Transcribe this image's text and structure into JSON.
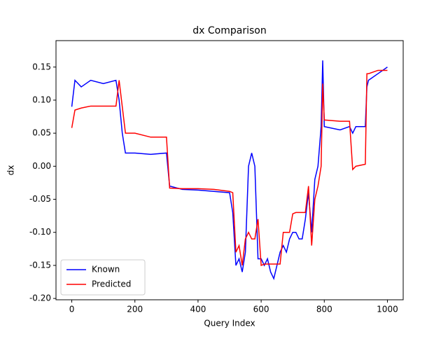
{
  "chart_data": {
    "type": "line",
    "title": "dx Comparison",
    "x_label": "Query Index",
    "y_label": "dx",
    "x": [
      0,
      10,
      30,
      60,
      100,
      140,
      150,
      160,
      170,
      200,
      250,
      300,
      310,
      350,
      400,
      450,
      500,
      510,
      520,
      530,
      540,
      550,
      560,
      570,
      580,
      590,
      600,
      610,
      620,
      630,
      640,
      650,
      660,
      670,
      680,
      690,
      700,
      710,
      720,
      730,
      740,
      750,
      760,
      770,
      780,
      790,
      795,
      800,
      850,
      880,
      890,
      900,
      930,
      935,
      940,
      970,
      1000
    ],
    "series": [
      {
        "name": "Known",
        "color": "#0000ff",
        "values": [
          0.09,
          0.13,
          0.12,
          0.13,
          0.125,
          0.13,
          0.1,
          0.05,
          0.02,
          0.02,
          0.018,
          0.02,
          -0.03,
          -0.035,
          -0.036,
          -0.038,
          -0.04,
          -0.07,
          -0.15,
          -0.14,
          -0.16,
          -0.13,
          0.0,
          0.02,
          0.0,
          -0.14,
          -0.14,
          -0.15,
          -0.14,
          -0.16,
          -0.17,
          -0.15,
          -0.13,
          -0.12,
          -0.13,
          -0.11,
          -0.1,
          -0.1,
          -0.11,
          -0.11,
          -0.08,
          -0.04,
          -0.1,
          -0.02,
          0.0,
          0.06,
          0.16,
          0.06,
          0.055,
          0.06,
          0.05,
          0.06,
          0.06,
          0.12,
          0.13,
          0.14,
          0.15
        ]
      },
      {
        "name": "Predicted",
        "color": "#ff0000",
        "values": [
          0.058,
          0.085,
          0.088,
          0.091,
          0.091,
          0.091,
          0.13,
          0.09,
          0.05,
          0.05,
          0.044,
          0.044,
          -0.033,
          -0.034,
          -0.034,
          -0.035,
          -0.038,
          -0.04,
          -0.13,
          -0.12,
          -0.15,
          -0.11,
          -0.1,
          -0.11,
          -0.11,
          -0.08,
          -0.15,
          -0.148,
          -0.148,
          -0.148,
          -0.148,
          -0.148,
          -0.148,
          -0.1,
          -0.1,
          -0.1,
          -0.072,
          -0.07,
          -0.07,
          -0.07,
          -0.07,
          -0.03,
          -0.12,
          -0.05,
          -0.03,
          0.0,
          0.125,
          0.07,
          0.068,
          0.068,
          -0.005,
          0.0,
          0.003,
          0.14,
          0.14,
          0.145,
          0.145
        ]
      }
    ],
    "xlim": [
      -50,
      1050
    ],
    "xticks": [
      0,
      200,
      400,
      600,
      800,
      1000
    ],
    "ylim": [
      -0.202,
      0.19
    ],
    "yticks": [
      {
        "value": -0.2,
        "label": "-0.20"
      },
      -0.15,
      {
        "value": -0.1,
        "label": "-0.10"
      },
      -0.05,
      {
        "value": 0,
        "label": "0.00"
      },
      0.05,
      {
        "value": 0.1,
        "label": "0.10"
      },
      0.15
    ],
    "grid": false,
    "legend": "lower left"
  }
}
